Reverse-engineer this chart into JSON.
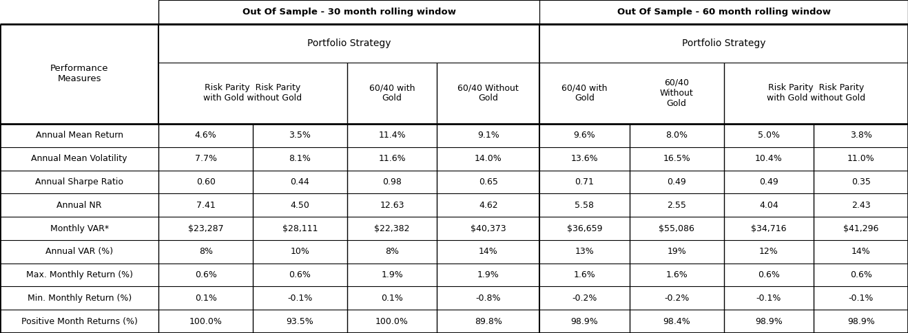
{
  "title_30": "Out Of Sample - 30 month rolling window",
  "title_60": "Out Of Sample - 60 month rolling window",
  "port_strat": "Portfolio Strategy",
  "perf_measures": "Performance\nMeasures",
  "col_headers_merged": [
    "Risk Parity  Risk Parity\nwith Gold without Gold",
    "60/40 with\nGold",
    "60/40 Without\nGold",
    "60/40 with\nGold",
    "60/40\nWithout\nGold",
    "Risk Parity  Risk Parity\nwith Gold without Gold"
  ],
  "row_labels": [
    "Annual Mean Return",
    "Annual Mean Volatility",
    "Annual Sharpe Ratio",
    "Annual NR",
    "Monthly VAR*",
    "Annual VAR (%)",
    "Max. Monthly Return (%)",
    "Min. Monthly Return (%)",
    "Positive Month Returns (%)"
  ],
  "data": [
    [
      "4.6%",
      "3.5%",
      "11.4%",
      "9.1%",
      "9.6%",
      "8.0%",
      "5.0%",
      "3.8%"
    ],
    [
      "7.7%",
      "8.1%",
      "11.6%",
      "14.0%",
      "13.6%",
      "16.5%",
      "10.4%",
      "11.0%"
    ],
    [
      "0.60",
      "0.44",
      "0.98",
      "0.65",
      "0.71",
      "0.49",
      "0.49",
      "0.35"
    ],
    [
      "7.41",
      "4.50",
      "12.63",
      "4.62",
      "5.58",
      "2.55",
      "4.04",
      "2.43"
    ],
    [
      "$23,287",
      "$28,111",
      "$22,382",
      "$40,373",
      "$36,659",
      "$55,086",
      "$34,716",
      "$41,296"
    ],
    [
      "8%",
      "10%",
      "8%",
      "14%",
      "13%",
      "19%",
      "12%",
      "14%"
    ],
    [
      "0.6%",
      "0.6%",
      "1.9%",
      "1.9%",
      "1.6%",
      "1.6%",
      "0.6%",
      "0.6%"
    ],
    [
      "0.1%",
      "-0.1%",
      "0.1%",
      "-0.8%",
      "-0.2%",
      "-0.2%",
      "-0.1%",
      "-0.1%"
    ],
    [
      "100.0%",
      "93.5%",
      "100.0%",
      "89.8%",
      "98.9%",
      "98.4%",
      "98.9%",
      "98.9%"
    ]
  ],
  "bg_color": "#ffffff",
  "line_color": "#000000"
}
